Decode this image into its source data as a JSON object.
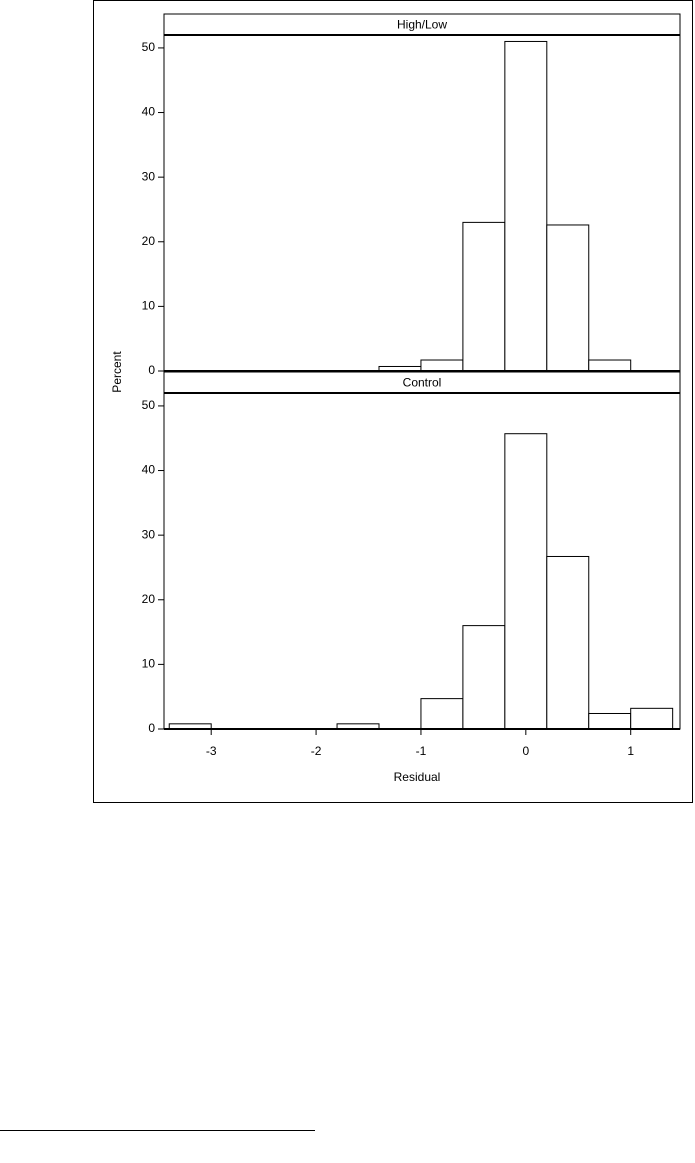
{
  "chart_data": [
    {
      "type": "histogram",
      "title": "High/Low",
      "ylabel": "Percent",
      "bins": [
        -3.4,
        -3.0,
        -2.6,
        -2.2,
        -1.8,
        -1.4,
        -1.0,
        -0.6,
        -0.2,
        0.2,
        0.6,
        1.0,
        1.4
      ],
      "values": [
        0,
        0,
        0,
        0,
        0,
        0.7,
        1.7,
        23,
        51,
        22.6,
        1.7,
        0
      ],
      "xlim": [
        -3.45,
        1.47
      ],
      "ylim": [
        0,
        52
      ],
      "yticks": [
        0,
        10,
        20,
        30,
        40,
        50
      ],
      "color": "#ffffff"
    },
    {
      "type": "histogram",
      "title": "Control",
      "xlabel": "Residual",
      "bins": [
        -3.4,
        -3.0,
        -2.6,
        -2.2,
        -1.8,
        -1.4,
        -1.0,
        -0.6,
        -0.2,
        0.2,
        0.6,
        1.0,
        1.4
      ],
      "values": [
        0.8,
        0,
        0,
        0,
        0.8,
        0,
        4.7,
        16,
        45.7,
        26.7,
        2.4,
        3.2
      ],
      "xlim": [
        -3.45,
        1.47
      ],
      "ylim": [
        0,
        52
      ],
      "yticks": [
        0,
        10,
        20,
        30,
        40,
        50
      ],
      "xticks": [
        -3,
        -2,
        -1,
        0,
        1
      ],
      "color": "#ffffff"
    }
  ]
}
